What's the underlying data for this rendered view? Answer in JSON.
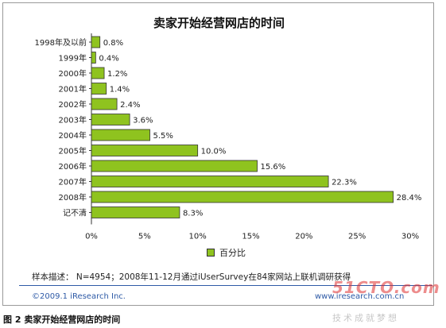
{
  "chart_data": {
    "type": "bar",
    "orientation": "horizontal",
    "title": "卖家开始经营网店的时间",
    "categories": [
      "1998年及以前",
      "1999年",
      "2000年",
      "2001年",
      "2002年",
      "2003年",
      "2004年",
      "2005年",
      "2006年",
      "2007年",
      "2008年",
      "记不清"
    ],
    "series": [
      {
        "name": "百分比",
        "values": [
          0.8,
          0.4,
          1.2,
          1.4,
          2.4,
          3.6,
          5.5,
          10.0,
          15.6,
          22.3,
          28.4,
          8.3
        ],
        "labels": [
          "0.8%",
          "0.4%",
          "1.2%",
          "1.4%",
          "2.4%",
          "3.6%",
          "5.5%",
          "10.0%",
          "15.6%",
          "22.3%",
          "28.4%",
          "8.3%"
        ]
      }
    ],
    "xlim": [
      0,
      30
    ],
    "xticks": [
      0,
      5,
      10,
      15,
      20,
      25,
      30
    ],
    "xtick_labels": [
      "0%",
      "5%",
      "10%",
      "15%",
      "20%",
      "25%",
      "30%"
    ],
    "legend": "bottom",
    "grid": false,
    "colors": {
      "bar": "#8fc31f",
      "bar_border": "#333333"
    }
  },
  "footer": {
    "source": "样本描述： N=4954；2008年11-12月通过iUserSurvey在84家网站上联机调研获得",
    "copyright": "©2009.1 iResearch Inc.",
    "site": "www.iresearch.com.cn"
  },
  "watermark": {
    "logo": "51CTO.com",
    "tagline": "技术成就梦想"
  },
  "caption": "图 2 卖家开始经营网店的时间"
}
